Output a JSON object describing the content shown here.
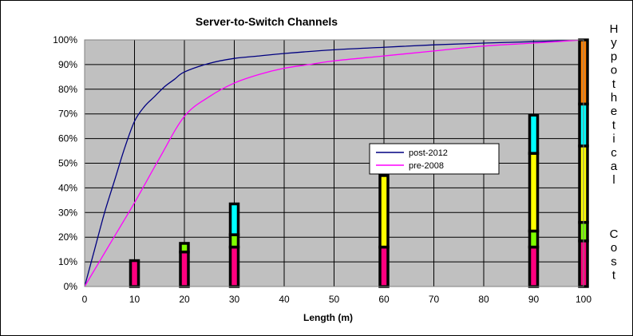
{
  "chart_data": {
    "type": "line",
    "title": "Server-to-Switch Channels",
    "xlabel": "Length (m)",
    "ylabel": "",
    "right_label": "Hypothetical Cost",
    "xlim": [
      0,
      100
    ],
    "ylim": [
      0,
      100
    ],
    "x_ticks": [
      0,
      10,
      20,
      30,
      40,
      50,
      60,
      70,
      80,
      90,
      100
    ],
    "y_ticks": [
      "0%",
      "10%",
      "20%",
      "30%",
      "40%",
      "50%",
      "60%",
      "70%",
      "80%",
      "90%",
      "100%"
    ],
    "grid": true,
    "legend_position": "center-right",
    "series": [
      {
        "name": "post-2012",
        "color": "#000080",
        "x": [
          0,
          2,
          4,
          6,
          8,
          10,
          12,
          14,
          16,
          18,
          20,
          25,
          30,
          35,
          40,
          50,
          60,
          70,
          80,
          90,
          100
        ],
        "values": [
          0,
          15,
          30,
          43,
          56,
          67,
          73,
          77,
          81,
          84,
          87,
          90.5,
          92.5,
          93.5,
          94.5,
          96,
          97,
          98,
          98.7,
          99.3,
          100
        ]
      },
      {
        "name": "pre-2008",
        "color": "#ff00ff",
        "x": [
          0,
          5,
          10,
          15,
          20,
          25,
          30,
          35,
          40,
          45,
          50,
          60,
          70,
          80,
          90,
          100
        ],
        "values": [
          0,
          17,
          34,
          52,
          69,
          77,
          82.5,
          86,
          88.5,
          90,
          91.5,
          93.5,
          95.5,
          97.5,
          98.7,
          100
        ]
      }
    ],
    "cost_bars": [
      {
        "x": 10,
        "segments": [
          {
            "from": 0,
            "to": 10.5,
            "color": "#ff007f"
          }
        ]
      },
      {
        "x": 20,
        "segments": [
          {
            "from": 0,
            "to": 14,
            "color": "#ff007f"
          },
          {
            "from": 14,
            "to": 17.5,
            "color": "#80ff00"
          }
        ]
      },
      {
        "x": 30,
        "segments": [
          {
            "from": 0,
            "to": 16,
            "color": "#ff007f"
          },
          {
            "from": 16,
            "to": 21,
            "color": "#80ff00"
          },
          {
            "from": 21,
            "to": 33.5,
            "color": "#00ffff"
          }
        ]
      },
      {
        "x": 60,
        "segments": [
          {
            "from": 0,
            "to": 16,
            "color": "#ff007f"
          },
          {
            "from": 16,
            "to": 45,
            "color": "#ffff00"
          }
        ]
      },
      {
        "x": 90,
        "segments": [
          {
            "from": 0,
            "to": 16,
            "color": "#ff007f"
          },
          {
            "from": 16,
            "to": 22.5,
            "color": "#80ff00"
          },
          {
            "from": 22.5,
            "to": 54,
            "color": "#ffff00"
          },
          {
            "from": 54,
            "to": 69.5,
            "color": "#00ffff"
          }
        ]
      },
      {
        "x": 100,
        "segments": [
          {
            "from": 0,
            "to": 18.5,
            "color": "#ff007f"
          },
          {
            "from": 18.5,
            "to": 26,
            "color": "#80ff00"
          },
          {
            "from": 26,
            "to": 57,
            "color": "#ffff00"
          },
          {
            "from": 57,
            "to": 74,
            "color": "#00ffff"
          },
          {
            "from": 74,
            "to": 100,
            "color": "#ff8000"
          }
        ]
      }
    ],
    "plot_background": "#c0c0c0"
  }
}
